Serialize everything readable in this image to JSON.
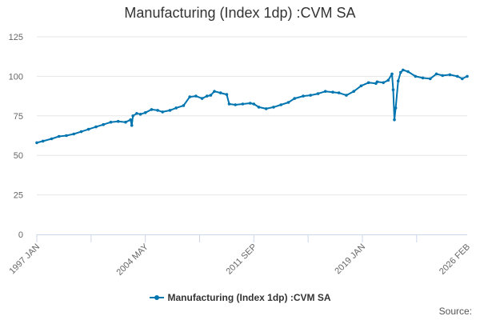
{
  "chart_data": {
    "type": "line",
    "title": "Manufacturing (Index 1dp) :CVM SA",
    "xlabel": "",
    "ylabel": "",
    "ylim": [
      0,
      125
    ],
    "yticks": [
      0,
      25,
      50,
      75,
      100,
      125
    ],
    "xlim": [
      "1997-01",
      "2026-02"
    ],
    "xticks": [
      {
        "label": "1997 JAN",
        "date": "1997-01"
      },
      {
        "label": "2004 MAY",
        "date": "2004-05"
      },
      {
        "label": "2011 SEP",
        "date": "2011-09"
      },
      {
        "label": "2019 JAN",
        "date": "2019-01"
      },
      {
        "label": "2026 FEB",
        "date": "2026-02"
      }
    ],
    "grid": "horizontal",
    "legend_position": "bottom",
    "series": [
      {
        "name": "Manufacturing (Index 1dp) :CVM SA",
        "color": "#0075b0",
        "points": [
          [
            "1997-01",
            58.0
          ],
          [
            "1997-06",
            59.0
          ],
          [
            "1998-01",
            60.5
          ],
          [
            "1998-07",
            62.0
          ],
          [
            "1999-01",
            62.5
          ],
          [
            "1999-07",
            63.5
          ],
          [
            "2000-01",
            65.0
          ],
          [
            "2000-07",
            66.5
          ],
          [
            "2001-01",
            68.0
          ],
          [
            "2001-07",
            69.5
          ],
          [
            "2002-01",
            71.0
          ],
          [
            "2002-07",
            71.5
          ],
          [
            "2003-01",
            71.0
          ],
          [
            "2003-05",
            72.5
          ],
          [
            "2003-06",
            69.0
          ],
          [
            "2003-07",
            75.0
          ],
          [
            "2003-10",
            76.5
          ],
          [
            "2004-01",
            76.0
          ],
          [
            "2004-05",
            77.0
          ],
          [
            "2004-10",
            79.0
          ],
          [
            "2005-03",
            78.5
          ],
          [
            "2005-07",
            77.5
          ],
          [
            "2006-01",
            78.5
          ],
          [
            "2006-06",
            80.0
          ],
          [
            "2006-12",
            81.5
          ],
          [
            "2007-05",
            87.0
          ],
          [
            "2007-10",
            87.5
          ],
          [
            "2008-03",
            86.0
          ],
          [
            "2008-07",
            87.5
          ],
          [
            "2008-10",
            88.0
          ],
          [
            "2009-01",
            90.5
          ],
          [
            "2009-06",
            89.5
          ],
          [
            "2009-11",
            88.5
          ],
          [
            "2010-01",
            82.5
          ],
          [
            "2010-06",
            82.0
          ],
          [
            "2010-12",
            82.5
          ],
          [
            "2011-06",
            83.0
          ],
          [
            "2011-09",
            82.5
          ],
          [
            "2012-01",
            80.5
          ],
          [
            "2012-07",
            79.5
          ],
          [
            "2013-01",
            80.5
          ],
          [
            "2013-07",
            82.0
          ],
          [
            "2014-01",
            83.5
          ],
          [
            "2014-06",
            86.0
          ],
          [
            "2015-01",
            87.5
          ],
          [
            "2015-07",
            88.0
          ],
          [
            "2016-01",
            89.0
          ],
          [
            "2016-07",
            90.5
          ],
          [
            "2017-01",
            90.0
          ],
          [
            "2017-06",
            89.5
          ],
          [
            "2017-12",
            88.0
          ],
          [
            "2018-06",
            90.5
          ],
          [
            "2018-12",
            94.0
          ],
          [
            "2019-06",
            96.0
          ],
          [
            "2019-12",
            95.5
          ],
          [
            "2020-01",
            96.5
          ],
          [
            "2020-06",
            96.0
          ],
          [
            "2020-10",
            97.5
          ],
          [
            "2021-01",
            101.5
          ],
          [
            "2021-02",
            91.5
          ],
          [
            "2021-03",
            72.5
          ],
          [
            "2021-04",
            80.0
          ],
          [
            "2021-06",
            97.0
          ],
          [
            "2021-08",
            102.5
          ],
          [
            "2021-10",
            104.0
          ],
          [
            "2022-02",
            103.0
          ],
          [
            "2022-08",
            100.0
          ],
          [
            "2023-02",
            99.0
          ],
          [
            "2023-08",
            98.5
          ],
          [
            "2024-01",
            101.5
          ],
          [
            "2024-06",
            100.5
          ],
          [
            "2024-12",
            101.0
          ],
          [
            "2025-06",
            100.0
          ],
          [
            "2025-10",
            98.5
          ],
          [
            "2026-02",
            100.0
          ]
        ]
      }
    ],
    "credits": "Source:"
  }
}
